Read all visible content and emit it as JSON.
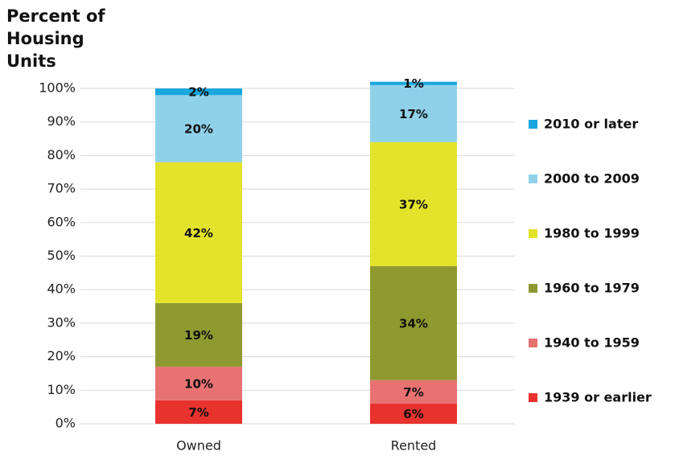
{
  "chart_data": {
    "type": "stacked_bar",
    "title": "Percent of Housing Units",
    "categories": [
      "Owned",
      "Rented"
    ],
    "series": [
      {
        "name": "1939 or earlier",
        "color": "#e8322e",
        "values": [
          7,
          6
        ],
        "value_labels": [
          "7%",
          "6%"
        ]
      },
      {
        "name": "1940 to 1959",
        "color": "#e87272",
        "values": [
          10,
          7
        ],
        "value_labels": [
          "10%",
          "7%"
        ]
      },
      {
        "name": "1960 to 1979",
        "color": "#8e9a30",
        "values": [
          19,
          34
        ],
        "value_labels": [
          "19%",
          "34%"
        ]
      },
      {
        "name": "1980 to 1999",
        "color": "#e3e32b",
        "values": [
          42,
          37
        ],
        "value_labels": [
          "42%",
          "37%"
        ]
      },
      {
        "name": "2000 to 2009",
        "color": "#90d1ea",
        "values": [
          20,
          17
        ],
        "value_labels": [
          "20%",
          "17%"
        ]
      },
      {
        "name": "2010 or later",
        "color": "#1ba7dd",
        "values": [
          2,
          1
        ],
        "value_labels": [
          "2%",
          "1%"
        ]
      }
    ],
    "ylim": [
      0,
      100
    ],
    "yticks": [
      {
        "value": 0,
        "label": "0%"
      },
      {
        "value": 10,
        "label": "10%"
      },
      {
        "value": 20,
        "label": "20%"
      },
      {
        "value": 30,
        "label": "30%"
      },
      {
        "value": 40,
        "label": "40%"
      },
      {
        "value": 50,
        "label": "50%"
      },
      {
        "value": 60,
        "label": "60%"
      },
      {
        "value": 70,
        "label": "70%"
      },
      {
        "value": 80,
        "label": "80%"
      },
      {
        "value": 90,
        "label": "90%"
      },
      {
        "value": 100,
        "label": "100%"
      }
    ],
    "grid": true,
    "legend": "right"
  }
}
